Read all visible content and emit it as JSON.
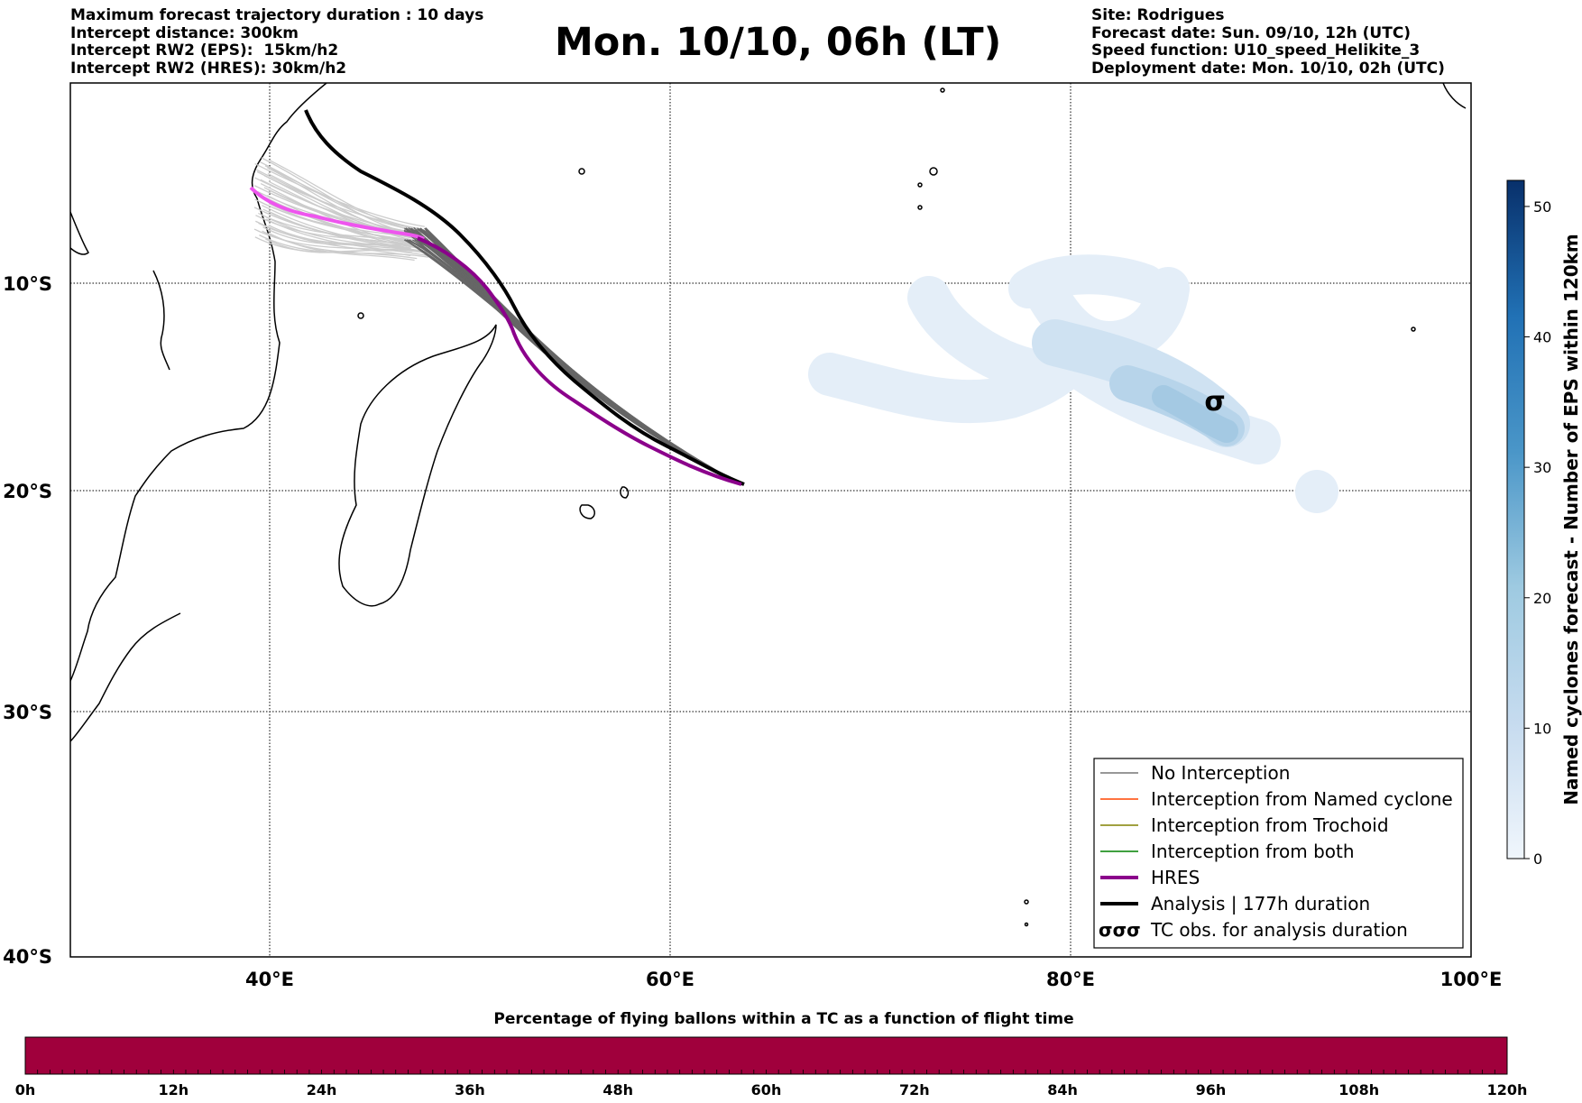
{
  "header": {
    "left": [
      "Maximum forecast trajectory duration : 10 days",
      "Intercept distance: 300km",
      "Intercept RW2 (EPS):  15km/h2",
      "Intercept RW2 (HRES): 30km/h2"
    ],
    "title": "Mon. 10/10, 06h (LT)",
    "right": [
      "Site: Rodrigues",
      "Forecast date: Sun. 09/10, 12h (UTC)",
      "Speed function: U10_speed_Helikite_3",
      "Deployment date: Mon. 10/10, 02h (UTC)"
    ]
  },
  "map": {
    "lat_labels": [
      "10°S",
      "20°S",
      "30°S",
      "40°S"
    ],
    "lon_labels": [
      "40°E",
      "60°E",
      "80°E",
      "100°E"
    ],
    "colors": {
      "hres": "#8b008b",
      "hres_early": "#ee55ee",
      "analysis": "#000000",
      "no_interception": "#777777",
      "eps_light": "#cccccc"
    }
  },
  "legend": {
    "items": [
      {
        "label": "No Interception",
        "color": "#777777",
        "width": 1.5
      },
      {
        "label": "Interception from Named cyclone",
        "color": "#ff4500",
        "width": 1.5
      },
      {
        "label": "Interception from Trochoid",
        "color": "#808000",
        "width": 1.5
      },
      {
        "label": "Interception from both",
        "color": "#008000",
        "width": 1.5
      },
      {
        "label": "HRES",
        "color": "#8b008b",
        "width": 4
      },
      {
        "label": "Analysis | 177h duration",
        "color": "#000000",
        "width": 4
      },
      {
        "label": "TC obs. for analysis duration",
        "symbol": "σσσ"
      }
    ]
  },
  "colorbar": {
    "label": "Named cyclones forecast - Number of EPS within 120km",
    "ticks": [
      "0",
      "10",
      "20",
      "30",
      "40",
      "50"
    ],
    "min": 0,
    "max": 52
  },
  "time_bar": {
    "title": "Percentage of flying ballons within a TC as a function of flight time",
    "ticks": [
      "0h",
      "12h",
      "24h",
      "36h",
      "48h",
      "60h",
      "72h",
      "84h",
      "96h",
      "108h",
      "120h"
    ],
    "color": "#a0003c"
  },
  "tc_symbol": "σ"
}
